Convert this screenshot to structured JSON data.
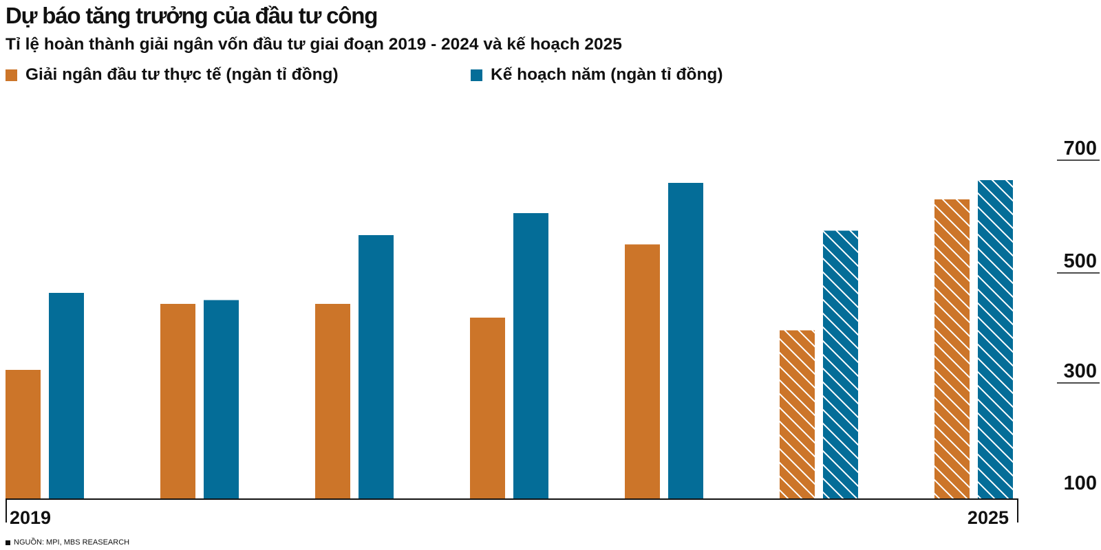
{
  "title": "Dự báo tăng trưởng của đầu tư công",
  "subtitle": "Tỉ lệ hoàn thành giải ngân vốn đầu tư giai đoạn 2019 - 2024 và kế hoạch 2025",
  "legend": [
    {
      "label": "Giải ngân đầu tư thực tế (ngàn tỉ đồng)",
      "color": "#CC7529"
    },
    {
      "label": "Kế hoạch năm (ngàn tỉ đồng)",
      "color": "#046D98"
    }
  ],
  "source": "NGUỒN: MPI, MBS REASEARCH",
  "chart_data": {
    "type": "bar",
    "categories": [
      "2019",
      "",
      "",
      "",
      "",
      "",
      "2025"
    ],
    "category_labels_shown": [
      "2019",
      "2025"
    ],
    "y_ticks": [
      100,
      300,
      500,
      700
    ],
    "ylim": [
      100,
      730
    ],
    "grid": false,
    "y_axis_side": "right",
    "legend_position": "top-left",
    "hatched_categories": [
      5,
      6
    ],
    "series": [
      {
        "name": "Giải ngân đầu tư thực tế (ngàn tỉ đồng)",
        "color": "#CC7529",
        "values": [
          335,
          455,
          455,
          430,
          563,
          407,
          645
        ]
      },
      {
        "name": "Kế hoạch năm (ngàn tỉ đồng)",
        "color": "#046D98",
        "values": [
          475,
          462,
          580,
          620,
          675,
          588,
          680
        ]
      }
    ]
  }
}
